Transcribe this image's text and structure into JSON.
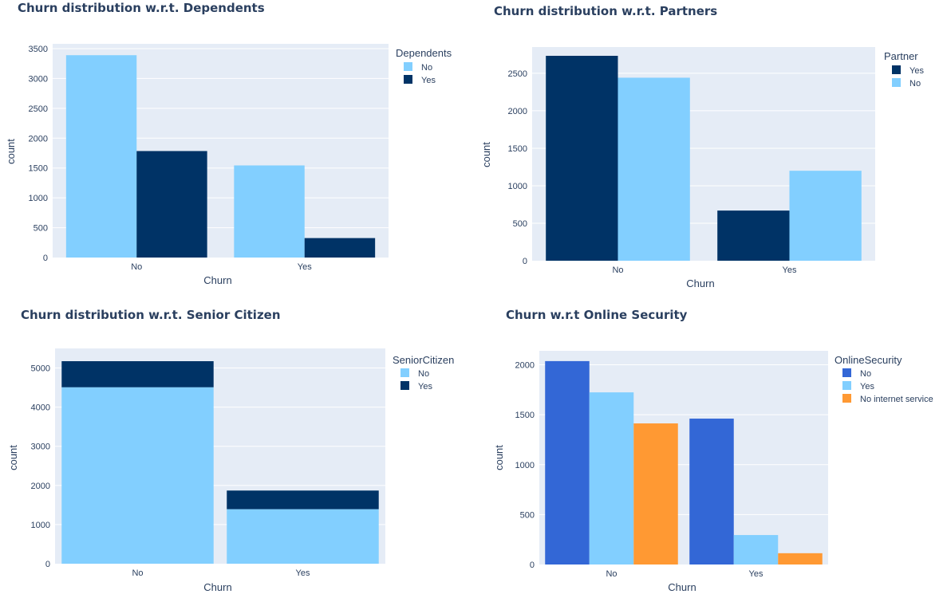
{
  "chart_data": [
    {
      "type": "bar",
      "barmode": "group",
      "title": "Churn distribution w.r.t. Dependents",
      "xlabel": "Churn",
      "ylabel": "count",
      "categories": [
        "No",
        "Yes"
      ],
      "ylim": [
        0,
        3580
      ],
      "yticks": [
        0,
        500,
        1000,
        1500,
        2000,
        2500,
        3000,
        3500
      ],
      "legend_title": "Dependents",
      "series": [
        {
          "name": "No",
          "values": [
            3390,
            1543
          ],
          "color": "#82cfff"
        },
        {
          "name": "Yes",
          "values": [
            1784,
            326
          ],
          "color": "#003366"
        }
      ]
    },
    {
      "type": "bar",
      "barmode": "group",
      "title": "Churn distribution w.r.t. Partners",
      "xlabel": "Churn",
      "ylabel": "count",
      "categories": [
        "No",
        "Yes"
      ],
      "ylim": [
        0,
        2850
      ],
      "yticks": [
        0,
        500,
        1000,
        1500,
        2000,
        2500
      ],
      "legend_title": "Partner",
      "series": [
        {
          "name": "Yes",
          "values": [
            2733,
            669
          ],
          "color": "#003366"
        },
        {
          "name": "No",
          "values": [
            2441,
            1200
          ],
          "color": "#82cfff"
        }
      ]
    },
    {
      "type": "bar",
      "barmode": "stack",
      "title": "Churn distribution w.r.t. Senior Citizen",
      "xlabel": "Churn",
      "ylabel": "count",
      "categories": [
        "No",
        "Yes"
      ],
      "ylim": [
        0,
        5500
      ],
      "yticks": [
        0,
        1000,
        2000,
        3000,
        4000,
        5000
      ],
      "legend_title": "SeniorCitizen",
      "series": [
        {
          "name": "No",
          "values": [
            4508,
            1393
          ],
          "color": "#82cfff"
        },
        {
          "name": "Yes",
          "values": [
            666,
            476
          ],
          "color": "#003366"
        }
      ]
    },
    {
      "type": "bar",
      "barmode": "group",
      "title": "Churn w.r.t Online Security",
      "xlabel": "Churn",
      "ylabel": "count",
      "categories": [
        "No",
        "Yes"
      ],
      "ylim": [
        0,
        2140
      ],
      "yticks": [
        0,
        500,
        1000,
        1500,
        2000
      ],
      "legend_title": "OnlineSecurity",
      "series": [
        {
          "name": "No",
          "values": [
            2037,
            1461
          ],
          "color": "#3367d6"
        },
        {
          "name": "Yes",
          "values": [
            1724,
            295
          ],
          "color": "#82cfff"
        },
        {
          "name": "No internet service",
          "values": [
            1413,
            113
          ],
          "color": "#ff9933"
        }
      ]
    }
  ]
}
